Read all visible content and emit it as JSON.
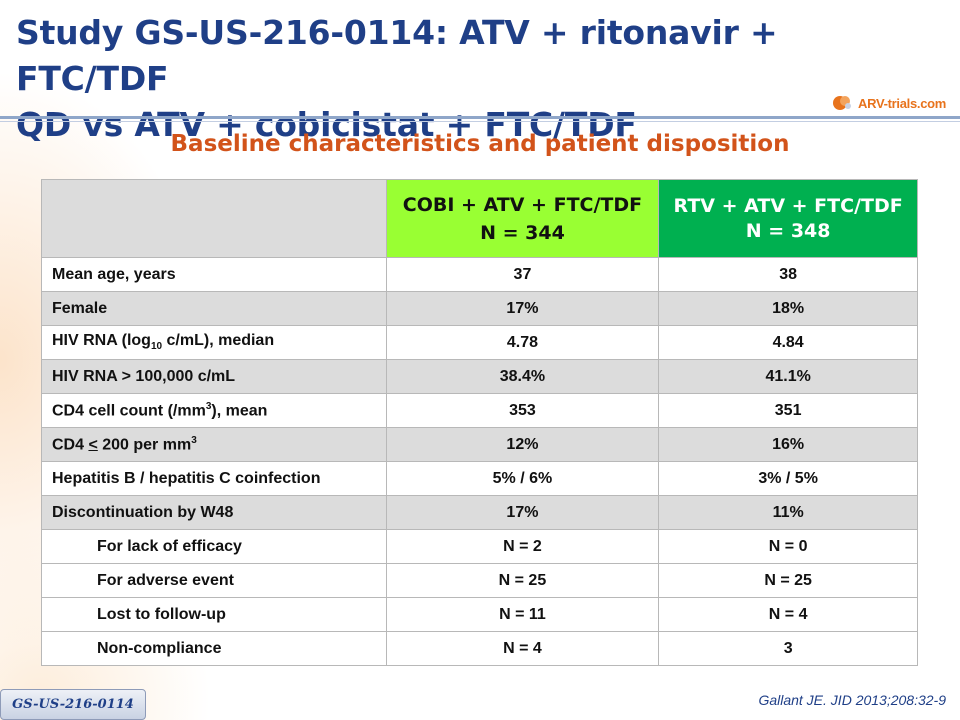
{
  "title": {
    "line1": "Study GS-US-216-0114: ATV + ritonavir + FTC/TDF",
    "line2": "QD vs ATV + cobicistat + FTC/TDF"
  },
  "logo": {
    "text": "ARV-trials.com",
    "icon": "arv-trials-logo-icon"
  },
  "subtitle": "Baseline characteristics and patient disposition",
  "table": {
    "columns": [
      {
        "name": "COBI + ATV + FTC/TDF",
        "n": "N = 344",
        "color": "#99ff33"
      },
      {
        "name": "RTV + ATV + FTC/TDF",
        "n": "N = 348",
        "color": "#00b050"
      }
    ],
    "rows": [
      {
        "label": "Mean age, years",
        "col1": "37",
        "col2": "38"
      },
      {
        "label": "Female",
        "col1": "17%",
        "col2": "18%"
      },
      {
        "label_pre": "HIV RNA (log",
        "label_sub": "10",
        "label_post": " c/mL), median",
        "col1": "4.78",
        "col2": "4.84"
      },
      {
        "label": "HIV RNA > 100,000 c/mL",
        "col1": "38.4%",
        "col2": "41.1%"
      },
      {
        "label_pre": "CD4 cell count (/mm",
        "label_sup": "3",
        "label_post": "), mean",
        "col1": "353",
        "col2": "351"
      },
      {
        "label_pre": "CD4 ",
        "label_u": "<",
        "label_mid": " 200 per mm",
        "label_sup": "3",
        "col1": "12%",
        "col2": "16%"
      },
      {
        "label": "Hepatitis B / hepatitis C coinfection",
        "col1": "5% / 6%",
        "col2": "3% / 5%"
      },
      {
        "label": "Discontinuation by W48",
        "col1": "17%",
        "col2": "11%"
      },
      {
        "label": "For lack of efficacy",
        "col1": "N = 2",
        "col2": "N = 0"
      },
      {
        "label": "For adverse event",
        "col1": "N = 25",
        "col2": "N = 25"
      },
      {
        "label": "Lost to follow-up",
        "col1": "N = 11",
        "col2": "N = 4"
      },
      {
        "label": "Non-compliance",
        "col1": "N = 4",
        "col2": "3"
      }
    ]
  },
  "footer": {
    "study_tag": "GS-US-216-0114",
    "citation": "Gallant JE. JID 2013;208:32-9"
  },
  "colors": {
    "title": "#1f3f87",
    "subtitle": "#d2531a",
    "row_shade": "#dcdcdc"
  }
}
